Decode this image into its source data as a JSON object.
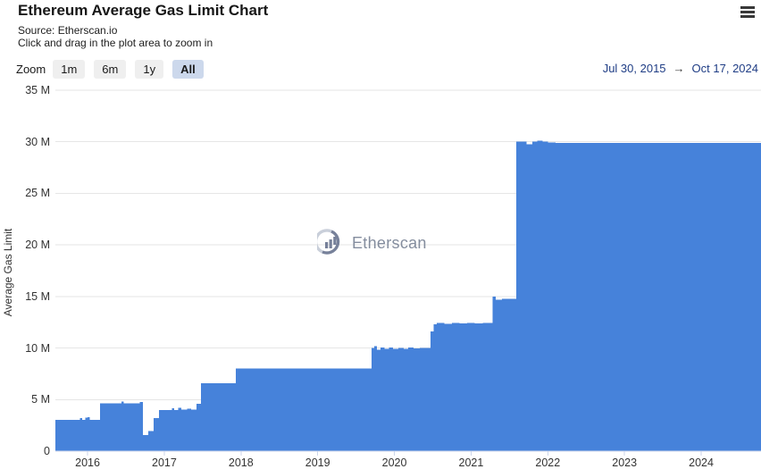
{
  "header": {
    "title": "Ethereum Average Gas Limit Chart",
    "source": "Source: Etherscan.io",
    "instruction": "Click and drag in the plot area to zoom in"
  },
  "toolbar": {
    "zoom_label": "Zoom",
    "buttons": [
      {
        "label": "1m",
        "selected": false
      },
      {
        "label": "6m",
        "selected": false
      },
      {
        "label": "1y",
        "selected": false
      },
      {
        "label": "All",
        "selected": true
      }
    ],
    "range_start": "Jul 30, 2015",
    "range_arrow": "→",
    "range_end": "Oct 17, 2024"
  },
  "watermark": {
    "text": "Etherscan"
  },
  "colors": {
    "bar_fill": "#4682da",
    "gridline": "#e6e6e6",
    "axis_line": "#ccd6eb",
    "label": "#333333",
    "range_text": "#1f3d85",
    "selected_button_bg": "#ccd8ec"
  },
  "chart_data": {
    "type": "area",
    "title": "Ethereum Average Gas Limit Chart",
    "ylabel": "Average Gas Limit",
    "xlabel": "",
    "unit": "millions of gas",
    "x_range": [
      2015.58,
      2024.8
    ],
    "x_start_label": "Jul 30, 2015",
    "x_end_label": "Oct 17, 2024",
    "ylim_millions": [
      0,
      35
    ],
    "y_ticks": [
      {
        "value": 0,
        "label": "0"
      },
      {
        "value": 5,
        "label": "5 M"
      },
      {
        "value": 10,
        "label": "10 M"
      },
      {
        "value": 15,
        "label": "15 M"
      },
      {
        "value": 20,
        "label": "20 M"
      },
      {
        "value": 25,
        "label": "25 M"
      },
      {
        "value": 30,
        "label": "30 M"
      },
      {
        "value": 35,
        "label": "35 M"
      }
    ],
    "x_ticks": [
      2016,
      2017,
      2018,
      2019,
      2020,
      2021,
      2022,
      2023,
      2024
    ],
    "grid": true,
    "legend": "none",
    "series": [
      {
        "name": "Average Gas Limit",
        "step": true,
        "points_year_valueM": [
          [
            2015.58,
            3.05
          ],
          [
            2015.9,
            3.2
          ],
          [
            2015.93,
            3.05
          ],
          [
            2015.97,
            3.25
          ],
          [
            2016.0,
            3.3
          ],
          [
            2016.03,
            3.05
          ],
          [
            2016.16,
            4.65
          ],
          [
            2016.44,
            4.8
          ],
          [
            2016.47,
            4.65
          ],
          [
            2016.68,
            4.75
          ],
          [
            2016.72,
            1.55
          ],
          [
            2016.79,
            1.95
          ],
          [
            2016.86,
            3.2
          ],
          [
            2016.93,
            4.0
          ],
          [
            2017.1,
            4.15
          ],
          [
            2017.13,
            4.0
          ],
          [
            2017.18,
            4.2
          ],
          [
            2017.22,
            4.05
          ],
          [
            2017.3,
            4.1
          ],
          [
            2017.35,
            4.05
          ],
          [
            2017.42,
            4.6
          ],
          [
            2017.48,
            6.6
          ],
          [
            2017.93,
            8.0
          ],
          [
            2019.7,
            10.0
          ],
          [
            2019.74,
            10.2
          ],
          [
            2019.77,
            9.85
          ],
          [
            2019.82,
            10.05
          ],
          [
            2019.87,
            9.9
          ],
          [
            2019.93,
            10.05
          ],
          [
            2019.98,
            9.9
          ],
          [
            2020.05,
            10.0
          ],
          [
            2020.12,
            9.9
          ],
          [
            2020.18,
            10.05
          ],
          [
            2020.25,
            9.95
          ],
          [
            2020.33,
            10.0
          ],
          [
            2020.47,
            11.6
          ],
          [
            2020.51,
            12.3
          ],
          [
            2020.55,
            12.45
          ],
          [
            2020.65,
            12.35
          ],
          [
            2020.75,
            12.45
          ],
          [
            2020.85,
            12.4
          ],
          [
            2020.95,
            12.45
          ],
          [
            2021.05,
            12.4
          ],
          [
            2021.15,
            12.45
          ],
          [
            2021.28,
            15.0
          ],
          [
            2021.32,
            14.7
          ],
          [
            2021.4,
            14.75
          ],
          [
            2021.59,
            30.0
          ],
          [
            2021.72,
            29.75
          ],
          [
            2021.8,
            30.0
          ],
          [
            2021.86,
            30.1
          ],
          [
            2021.93,
            30.0
          ],
          [
            2022.0,
            29.95
          ],
          [
            2022.1,
            29.9
          ],
          [
            2024.8,
            29.9
          ]
        ]
      }
    ]
  }
}
